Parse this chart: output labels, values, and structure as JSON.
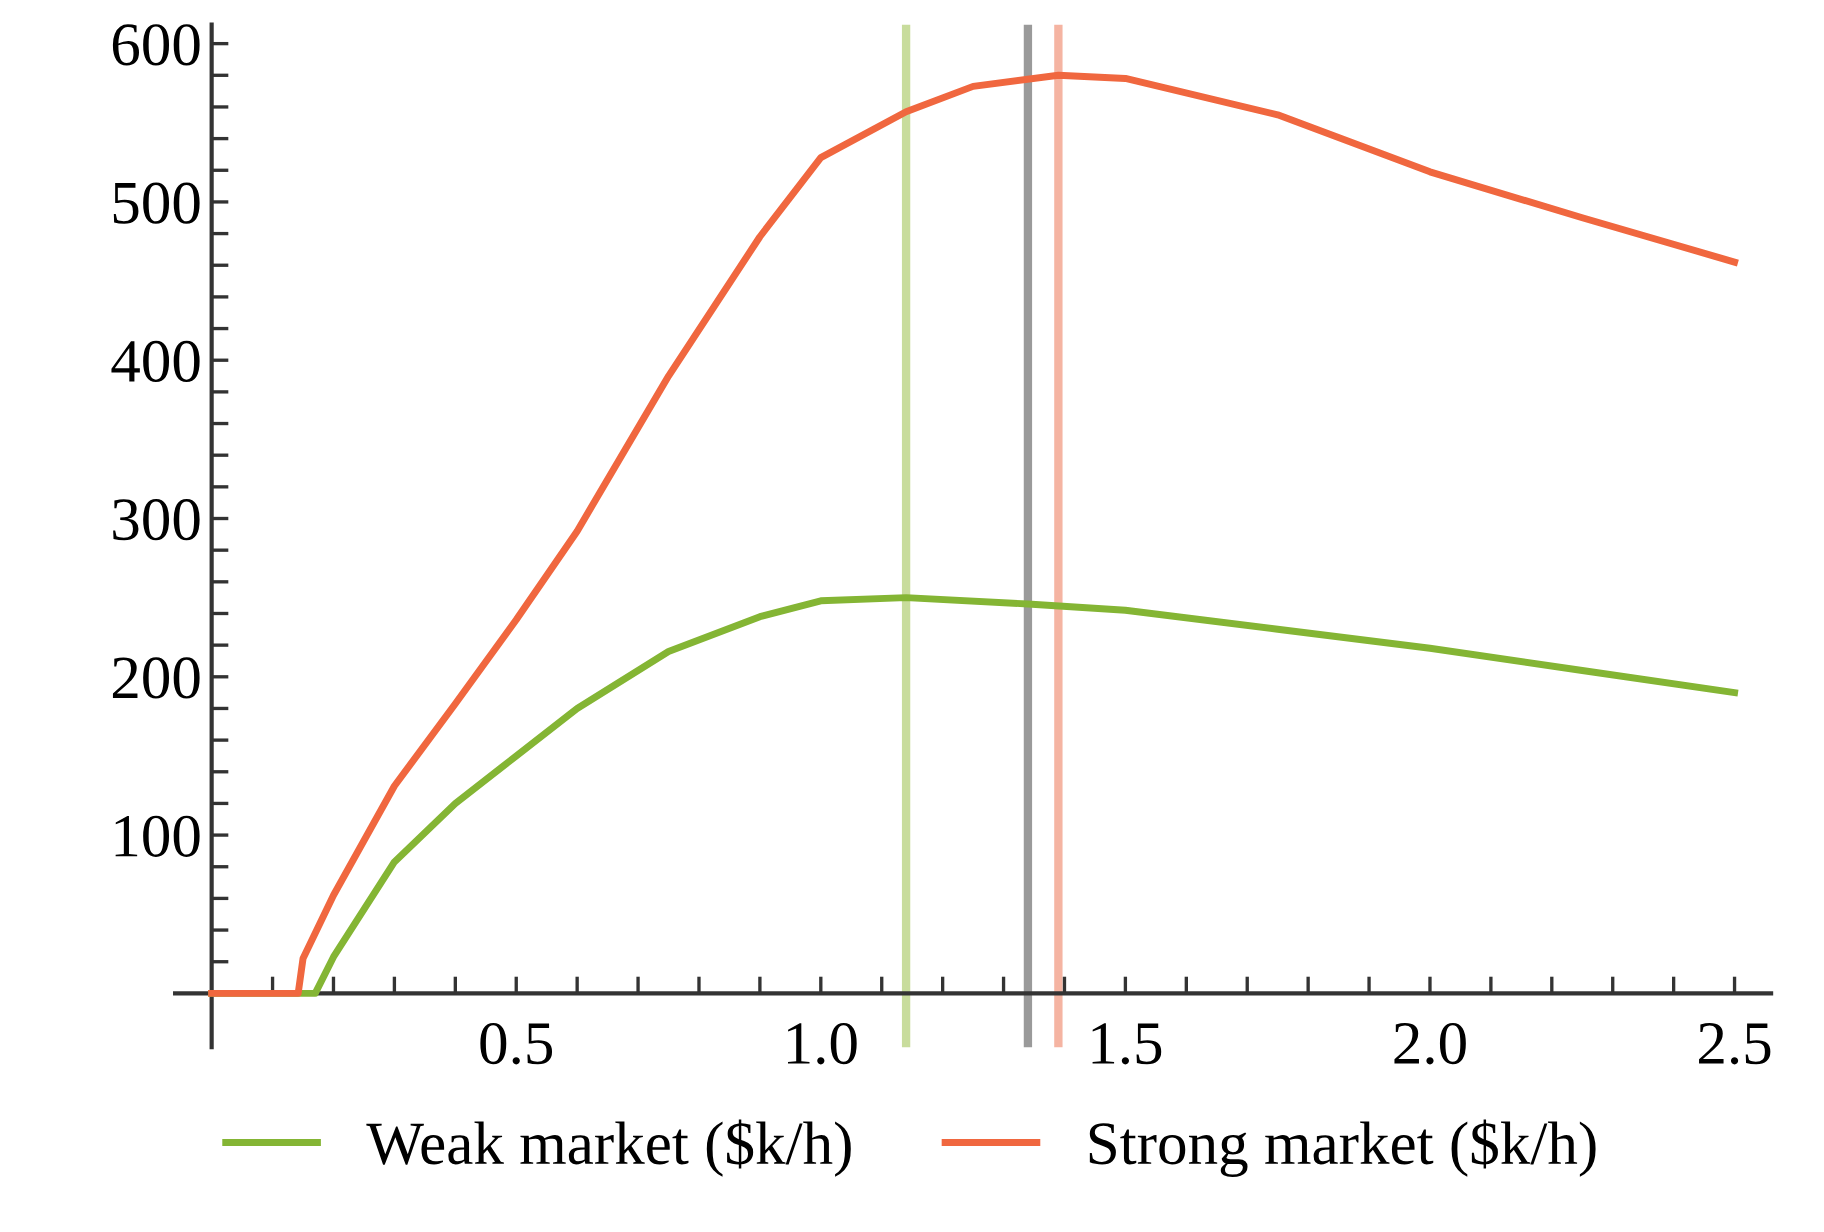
{
  "chart_data": {
    "type": "line",
    "xlim": [
      -0.06,
      2.56
    ],
    "ylim": [
      -34,
      612
    ],
    "xticks": [
      {
        "value": 0.1,
        "label": null
      },
      {
        "value": 0.2,
        "label": null
      },
      {
        "value": 0.3,
        "label": null
      },
      {
        "value": 0.4,
        "label": null
      },
      {
        "value": 0.5,
        "label": "0.5"
      },
      {
        "value": 0.6,
        "label": null
      },
      {
        "value": 0.7,
        "label": null
      },
      {
        "value": 0.8,
        "label": null
      },
      {
        "value": 0.9,
        "label": null
      },
      {
        "value": 1.0,
        "label": "1.0"
      },
      {
        "value": 1.1,
        "label": null
      },
      {
        "value": 1.2,
        "label": null
      },
      {
        "value": 1.3,
        "label": null
      },
      {
        "value": 1.4,
        "label": null
      },
      {
        "value": 1.5,
        "label": "1.5"
      },
      {
        "value": 1.6,
        "label": null
      },
      {
        "value": 1.7,
        "label": null
      },
      {
        "value": 1.8,
        "label": null
      },
      {
        "value": 1.9,
        "label": null
      },
      {
        "value": 2.0,
        "label": "2.0"
      },
      {
        "value": 2.1,
        "label": null
      },
      {
        "value": 2.2,
        "label": null
      },
      {
        "value": 2.3,
        "label": null
      },
      {
        "value": 2.4,
        "label": null
      },
      {
        "value": 2.5,
        "label": "2.5"
      }
    ],
    "yticks": [
      {
        "value": 20,
        "label": null
      },
      {
        "value": 40,
        "label": null
      },
      {
        "value": 60,
        "label": null
      },
      {
        "value": 80,
        "label": null
      },
      100,
      {
        "value": 120,
        "label": null
      },
      {
        "value": 140,
        "label": null
      },
      {
        "value": 160,
        "label": null
      },
      {
        "value": 180,
        "label": null
      },
      200,
      {
        "value": 220,
        "label": null
      },
      {
        "value": 240,
        "label": null
      },
      {
        "value": 260,
        "label": null
      },
      {
        "value": 280,
        "label": null
      },
      300,
      {
        "value": 320,
        "label": null
      },
      {
        "value": 340,
        "label": null
      },
      {
        "value": 360,
        "label": null
      },
      {
        "value": 380,
        "label": null
      },
      400,
      {
        "value": 420,
        "label": null
      },
      {
        "value": 440,
        "label": null
      },
      {
        "value": 460,
        "label": null
      },
      {
        "value": 480,
        "label": null
      },
      500,
      {
        "value": 520,
        "label": null
      },
      {
        "value": 540,
        "label": null
      },
      {
        "value": 560,
        "label": null
      },
      {
        "value": 580,
        "label": null
      },
      600
    ],
    "grid": false,
    "legend": "bottom",
    "line_style": "solid",
    "marker": "none",
    "series": [
      {
        "name": "Weak market ($k/h)",
        "color": "#84b534",
        "x": [
          0,
          0.17,
          0.2,
          0.3,
          0.4,
          0.5,
          0.6,
          0.75,
          0.9,
          1.0,
          1.14,
          1.34,
          1.5,
          1.75,
          2.0,
          2.25,
          2.5
        ],
        "values": [
          0,
          0,
          23,
          83,
          120,
          150,
          180,
          216,
          238,
          248,
          250,
          246,
          242,
          230,
          218,
          204,
          190
        ]
      },
      {
        "name": "Strong market ($k/h)",
        "color": "#f0673f",
        "x": [
          0,
          0.142,
          0.15,
          0.2,
          0.3,
          0.4,
          0.5,
          0.6,
          0.75,
          0.9,
          1.0,
          1.14,
          1.25,
          1.39,
          1.5,
          1.75,
          2.0,
          2.25,
          2.5
        ],
        "values": [
          0,
          0,
          22,
          62,
          131,
          183,
          236,
          292,
          390,
          478,
          528,
          557,
          573,
          580,
          578,
          555,
          519,
          490,
          462
        ]
      }
    ],
    "ref_lines": [
      {
        "axis": "x",
        "value": 1.14,
        "color": "#c8dc9c"
      },
      {
        "axis": "x",
        "value": 1.34,
        "color": "#9a9a9a"
      },
      {
        "axis": "x",
        "value": 1.39,
        "color": "#f5b4a2"
      }
    ]
  }
}
